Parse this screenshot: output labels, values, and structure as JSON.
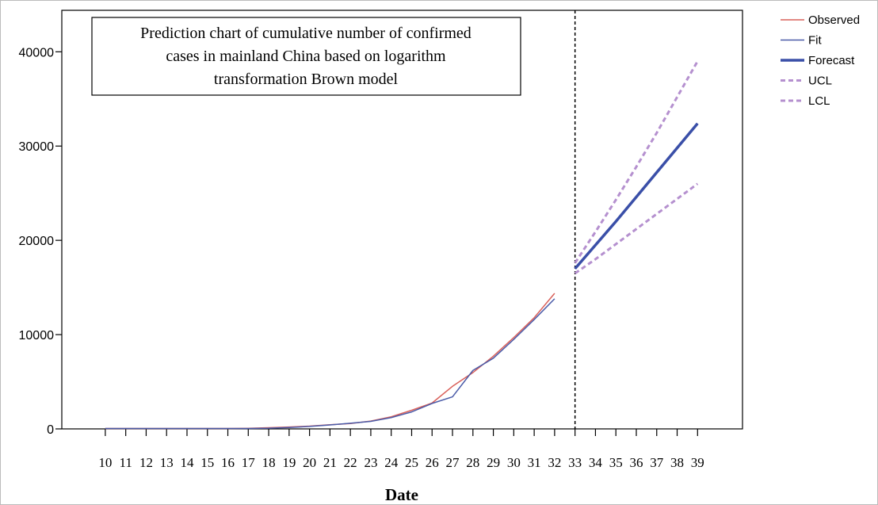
{
  "chart_data": {
    "type": "line",
    "title": [
      "Prediction chart of cumulative number of confirmed",
      "cases in mainland China based on logarithm",
      "transformation Brown model"
    ],
    "x_label": "Date",
    "x": [
      10,
      11,
      12,
      13,
      14,
      15,
      16,
      17,
      18,
      19,
      20,
      21,
      22,
      23,
      24,
      25,
      26,
      27,
      28,
      29,
      30,
      31,
      32,
      33,
      34,
      35,
      36,
      37,
      38,
      39
    ],
    "xlim": [
      7.87,
      41.2
    ],
    "xticks": [
      10,
      11,
      12,
      13,
      14,
      15,
      16,
      17,
      18,
      19,
      20,
      21,
      22,
      23,
      24,
      25,
      26,
      27,
      28,
      29,
      30,
      31,
      32,
      33,
      34,
      35,
      36,
      37,
      38,
      39
    ],
    "ylim": [
      0,
      44400
    ],
    "yticks": [
      0,
      10000,
      20000,
      30000,
      40000
    ],
    "vline": 33,
    "series": [
      {
        "name": "Observed",
        "color": "#d9605a",
        "width": 1.5,
        "dashed": false,
        "values": [
          41,
          41,
          41,
          41,
          41,
          41,
          45,
          62,
          121,
          198,
          291,
          440,
          571,
          830,
          1287,
          1975,
          2744,
          4515,
          5974,
          7711,
          9692,
          11791,
          14380,
          null,
          null,
          null,
          null,
          null,
          null,
          null
        ]
      },
      {
        "name": "Fit",
        "color": "#4a5ba8",
        "width": 1.5,
        "dashed": false,
        "values": [
          40,
          40,
          40,
          40,
          40,
          40,
          40,
          40,
          70,
          150,
          260,
          420,
          600,
          800,
          1200,
          1800,
          2700,
          3400,
          6200,
          7500,
          9500,
          11600,
          13800,
          null,
          null,
          null,
          null,
          null,
          null,
          null
        ]
      },
      {
        "name": "Forecast",
        "color": "#3a4fa8",
        "width": 3.5,
        "dashed": false,
        "values": [
          null,
          null,
          null,
          null,
          null,
          null,
          null,
          null,
          null,
          null,
          null,
          null,
          null,
          null,
          null,
          null,
          null,
          null,
          null,
          null,
          null,
          null,
          null,
          17000,
          19500,
          22000,
          24600,
          27200,
          29800,
          32400
        ]
      },
      {
        "name": "UCL",
        "color": "#b590cf",
        "width": 3,
        "dashed": true,
        "values": [
          null,
          null,
          null,
          null,
          null,
          null,
          null,
          null,
          null,
          null,
          null,
          null,
          null,
          null,
          null,
          null,
          null,
          null,
          null,
          null,
          null,
          null,
          null,
          17600,
          20900,
          24300,
          27800,
          31400,
          35200,
          39000
        ]
      },
      {
        "name": "LCL",
        "color": "#b590cf",
        "width": 3,
        "dashed": true,
        "values": [
          null,
          null,
          null,
          null,
          null,
          null,
          null,
          null,
          null,
          null,
          null,
          null,
          null,
          null,
          null,
          null,
          null,
          null,
          null,
          null,
          null,
          null,
          null,
          16500,
          18000,
          19600,
          21200,
          22800,
          24400,
          26000
        ]
      }
    ]
  }
}
